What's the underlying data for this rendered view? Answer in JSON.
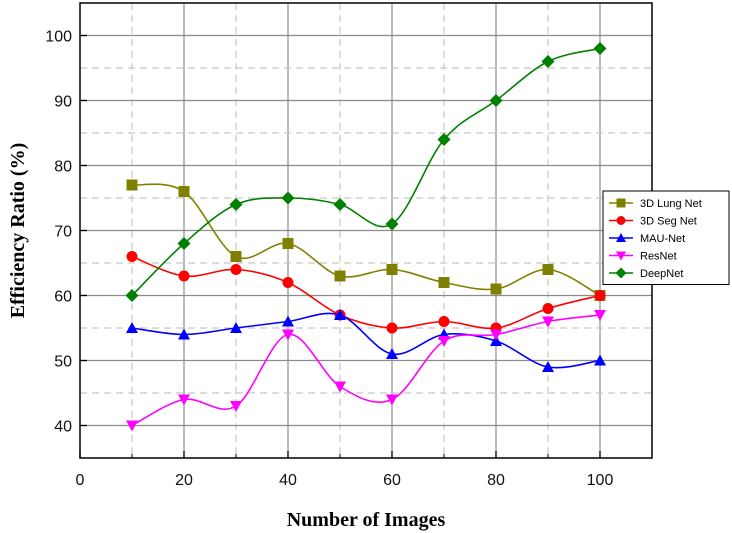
{
  "chart_data": {
    "type": "line",
    "title": "",
    "xlabel": "Number of Images",
    "ylabel": "Efficiency Ratio (%)",
    "xlim": [
      0,
      110
    ],
    "ylim": [
      35,
      105
    ],
    "xticks": [
      0,
      20,
      40,
      60,
      80,
      100
    ],
    "yticks": [
      40,
      50,
      60,
      70,
      80,
      90,
      100
    ],
    "grid": true,
    "legend_position": "right",
    "x": [
      10,
      20,
      30,
      40,
      50,
      60,
      70,
      80,
      90,
      100
    ],
    "series": [
      {
        "name": "3D Lung Net",
        "color": "#808000",
        "marker": "square",
        "values": [
          77,
          76,
          66,
          68,
          63,
          64,
          62,
          61,
          64,
          60
        ]
      },
      {
        "name": "3D Seg Net",
        "color": "#ff0000",
        "marker": "circle",
        "values": [
          66,
          63,
          64,
          62,
          57,
          55,
          56,
          55,
          58,
          60
        ]
      },
      {
        "name": "MAU-Net",
        "color": "#0000ff",
        "marker": "triangle-up",
        "values": [
          55,
          54,
          55,
          56,
          57,
          51,
          54,
          53,
          49,
          50
        ]
      },
      {
        "name": "ResNet",
        "color": "#ff00ff",
        "marker": "triangle-down",
        "values": [
          40,
          44,
          43,
          54,
          46,
          44,
          53,
          54,
          56,
          57
        ]
      },
      {
        "name": "DeepNet",
        "color": "#008000",
        "marker": "diamond",
        "values": [
          60,
          68,
          74,
          75,
          74,
          71,
          84,
          90,
          96,
          98
        ]
      }
    ]
  }
}
